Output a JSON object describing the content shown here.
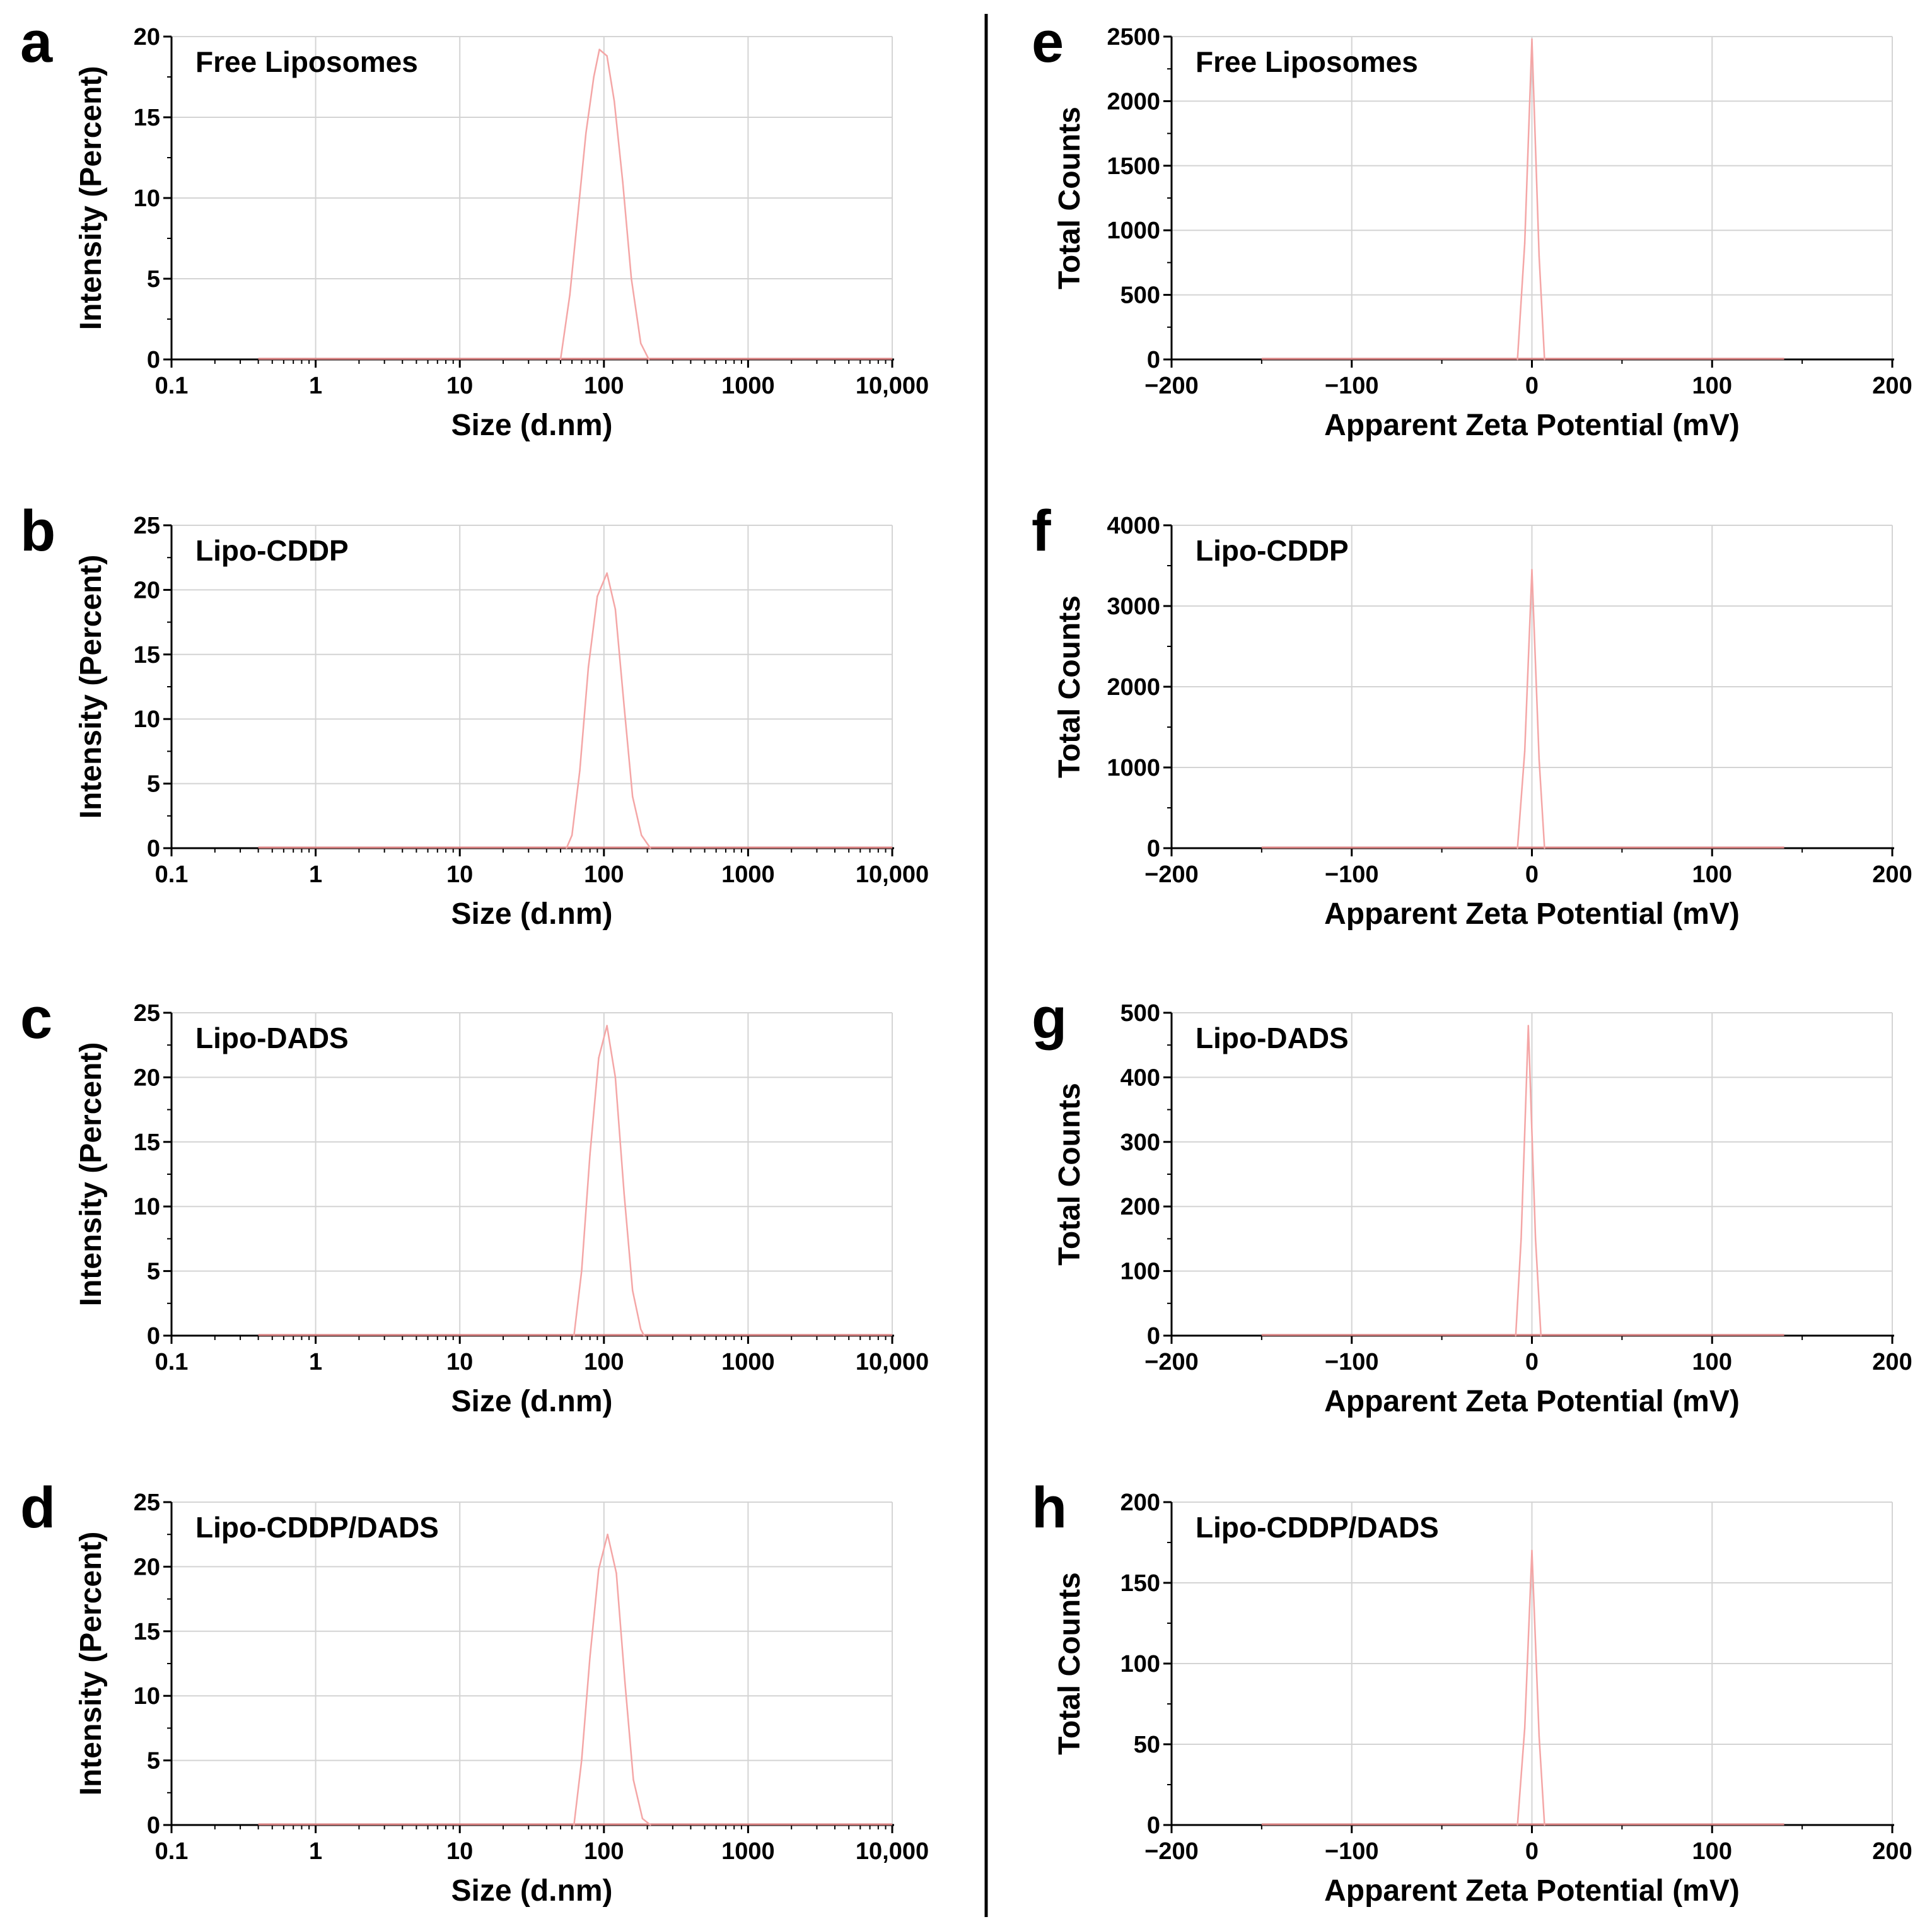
{
  "colors": {
    "curve": "#F4A6A6",
    "baseline": "#D88080",
    "grid": "#D4D4D4",
    "axis": "#000000",
    "divider": "#000000"
  },
  "chart_data": [
    {
      "id": "a",
      "panel_label": "a",
      "type": "line",
      "title": "Free Liposomes",
      "xlabel": "Size (d.nm)",
      "ylabel": "Intensity (Percent)",
      "xscale": "log",
      "xlim": [
        0.1,
        10000
      ],
      "ylim": [
        0,
        20
      ],
      "x_ticks": [
        0.1,
        1,
        10,
        100,
        1000,
        10000
      ],
      "x_tick_labels": [
        "0.1",
        "1",
        "10",
        "100",
        "1000",
        "10,000"
      ],
      "y_ticks": [
        0,
        5,
        10,
        15,
        20
      ],
      "series": [
        {
          "name": "Free Liposomes",
          "baseline_range": [
            0.4,
            10000
          ],
          "x": [
            50,
            58,
            66,
            75,
            85,
            93,
            105,
            118,
            135,
            155,
            180,
            205
          ],
          "y": [
            0,
            4,
            9,
            14,
            17.5,
            19.2,
            18.8,
            16,
            11,
            5,
            1,
            0
          ]
        }
      ]
    },
    {
      "id": "b",
      "panel_label": "b",
      "type": "line",
      "title": "Lipo-CDDP",
      "xlabel": "Size (d.nm)",
      "ylabel": "Intensity (Percent)",
      "xscale": "log",
      "xlim": [
        0.1,
        10000
      ],
      "ylim": [
        0,
        25
      ],
      "x_ticks": [
        0.1,
        1,
        10,
        100,
        1000,
        10000
      ],
      "x_tick_labels": [
        "0.1",
        "1",
        "10",
        "100",
        "1000",
        "10,000"
      ],
      "y_ticks": [
        0,
        5,
        10,
        15,
        20,
        25
      ],
      "series": [
        {
          "name": "Lipo-CDDP",
          "baseline_range": [
            0.4,
            10000
          ],
          "x": [
            55,
            60,
            68,
            78,
            90,
            105,
            120,
            138,
            158,
            182,
            210
          ],
          "y": [
            0,
            1,
            6,
            14,
            19.5,
            21.3,
            18.5,
            11,
            4,
            1,
            0
          ]
        }
      ]
    },
    {
      "id": "c",
      "panel_label": "c",
      "type": "line",
      "title": "Lipo-DADS",
      "xlabel": "Size (d.nm)",
      "ylabel": "Intensity (Percent)",
      "xscale": "log",
      "xlim": [
        0.1,
        10000
      ],
      "ylim": [
        0,
        25
      ],
      "x_ticks": [
        0.1,
        1,
        10,
        100,
        1000,
        10000
      ],
      "x_tick_labels": [
        "0.1",
        "1",
        "10",
        "100",
        "1000",
        "10,000"
      ],
      "y_ticks": [
        0,
        5,
        10,
        15,
        20,
        25
      ],
      "series": [
        {
          "name": "Lipo-DADS",
          "baseline_range": [
            0.4,
            10000
          ],
          "x": [
            62,
            70,
            80,
            92,
            105,
            120,
            138,
            158,
            180,
            190
          ],
          "y": [
            0,
            5,
            14,
            21.5,
            24,
            20,
            11,
            3.5,
            0.5,
            0
          ]
        }
      ]
    },
    {
      "id": "d",
      "panel_label": "d",
      "type": "line",
      "title": "Lipo-CDDP/DADS",
      "xlabel": "Size (d.nm)",
      "ylabel": "Intensity (Percent)",
      "xscale": "log",
      "xlim": [
        0.1,
        10000
      ],
      "ylim": [
        0,
        25
      ],
      "x_ticks": [
        0.1,
        1,
        10,
        100,
        1000,
        10000
      ],
      "x_tick_labels": [
        "0.1",
        "1",
        "10",
        "100",
        "1000",
        "10,000"
      ],
      "y_ticks": [
        0,
        5,
        10,
        15,
        20,
        25
      ],
      "series": [
        {
          "name": "Lipo-CDDP/DADS",
          "baseline_range": [
            0.4,
            10000
          ],
          "x": [
            62,
            70,
            80,
            92,
            106,
            122,
            140,
            160,
            185,
            210
          ],
          "y": [
            0,
            5,
            13,
            19.8,
            22.5,
            19.5,
            11,
            3.5,
            0.5,
            0
          ]
        }
      ]
    },
    {
      "id": "e",
      "panel_label": "e",
      "type": "line",
      "title": "Free Liposomes",
      "xlabel": "Apparent Zeta Potential (mV)",
      "ylabel": "Total Counts",
      "xscale": "linear",
      "xlim": [
        -200,
        200
      ],
      "ylim": [
        0,
        2500
      ],
      "x_ticks": [
        -200,
        -100,
        0,
        100,
        200
      ],
      "x_tick_labels": [
        "−200",
        "−100",
        "0",
        "100",
        "200"
      ],
      "y_ticks": [
        0,
        500,
        1000,
        1500,
        2000,
        2500
      ],
      "series": [
        {
          "name": "Free Liposomes",
          "baseline_range": [
            -150,
            140
          ],
          "x": [
            -8,
            -4,
            0,
            4,
            7
          ],
          "y": [
            0,
            900,
            2480,
            800,
            0
          ]
        }
      ]
    },
    {
      "id": "f",
      "panel_label": "f",
      "type": "line",
      "title": "Lipo-CDDP",
      "xlabel": "Apparent Zeta Potential (mV)",
      "ylabel": "Total Counts",
      "xscale": "linear",
      "xlim": [
        -200,
        200
      ],
      "ylim": [
        0,
        4000
      ],
      "x_ticks": [
        -200,
        -100,
        0,
        100,
        200
      ],
      "x_tick_labels": [
        "−200",
        "−100",
        "0",
        "100",
        "200"
      ],
      "y_ticks": [
        0,
        1000,
        2000,
        3000,
        4000
      ],
      "series": [
        {
          "name": "Lipo-CDDP",
          "baseline_range": [
            -150,
            140
          ],
          "x": [
            -8,
            -4,
            0,
            4,
            7
          ],
          "y": [
            0,
            1200,
            3450,
            1100,
            0
          ]
        }
      ]
    },
    {
      "id": "g",
      "panel_label": "g",
      "type": "line",
      "title": "Lipo-DADS",
      "xlabel": "Apparent Zeta Potential (mV)",
      "ylabel": "Total Counts",
      "xscale": "linear",
      "xlim": [
        -200,
        200
      ],
      "ylim": [
        0,
        500
      ],
      "x_ticks": [
        -200,
        -100,
        0,
        100,
        200
      ],
      "x_tick_labels": [
        "−200",
        "−100",
        "0",
        "100",
        "200"
      ],
      "y_ticks": [
        0,
        100,
        200,
        300,
        400,
        500
      ],
      "series": [
        {
          "name": "Lipo-DADS",
          "baseline_range": [
            -150,
            140
          ],
          "x": [
            -9,
            -6,
            -2,
            2,
            5
          ],
          "y": [
            0,
            150,
            480,
            150,
            0
          ]
        }
      ]
    },
    {
      "id": "h",
      "panel_label": "h",
      "type": "line",
      "title": "Lipo-CDDP/DADS",
      "xlabel": "Apparent Zeta Potential (mV)",
      "ylabel": "Total Counts",
      "xscale": "linear",
      "xlim": [
        -200,
        200
      ],
      "ylim": [
        0,
        200
      ],
      "x_ticks": [
        -200,
        -100,
        0,
        100,
        200
      ],
      "x_tick_labels": [
        "−200",
        "−100",
        "0",
        "100",
        "200"
      ],
      "y_ticks": [
        0,
        50,
        100,
        150,
        200
      ],
      "series": [
        {
          "name": "Lipo-CDDP/DADS",
          "baseline_range": [
            -150,
            140
          ],
          "x": [
            -8,
            -4,
            0,
            4,
            7
          ],
          "y": [
            0,
            60,
            170,
            55,
            0
          ]
        }
      ]
    }
  ]
}
